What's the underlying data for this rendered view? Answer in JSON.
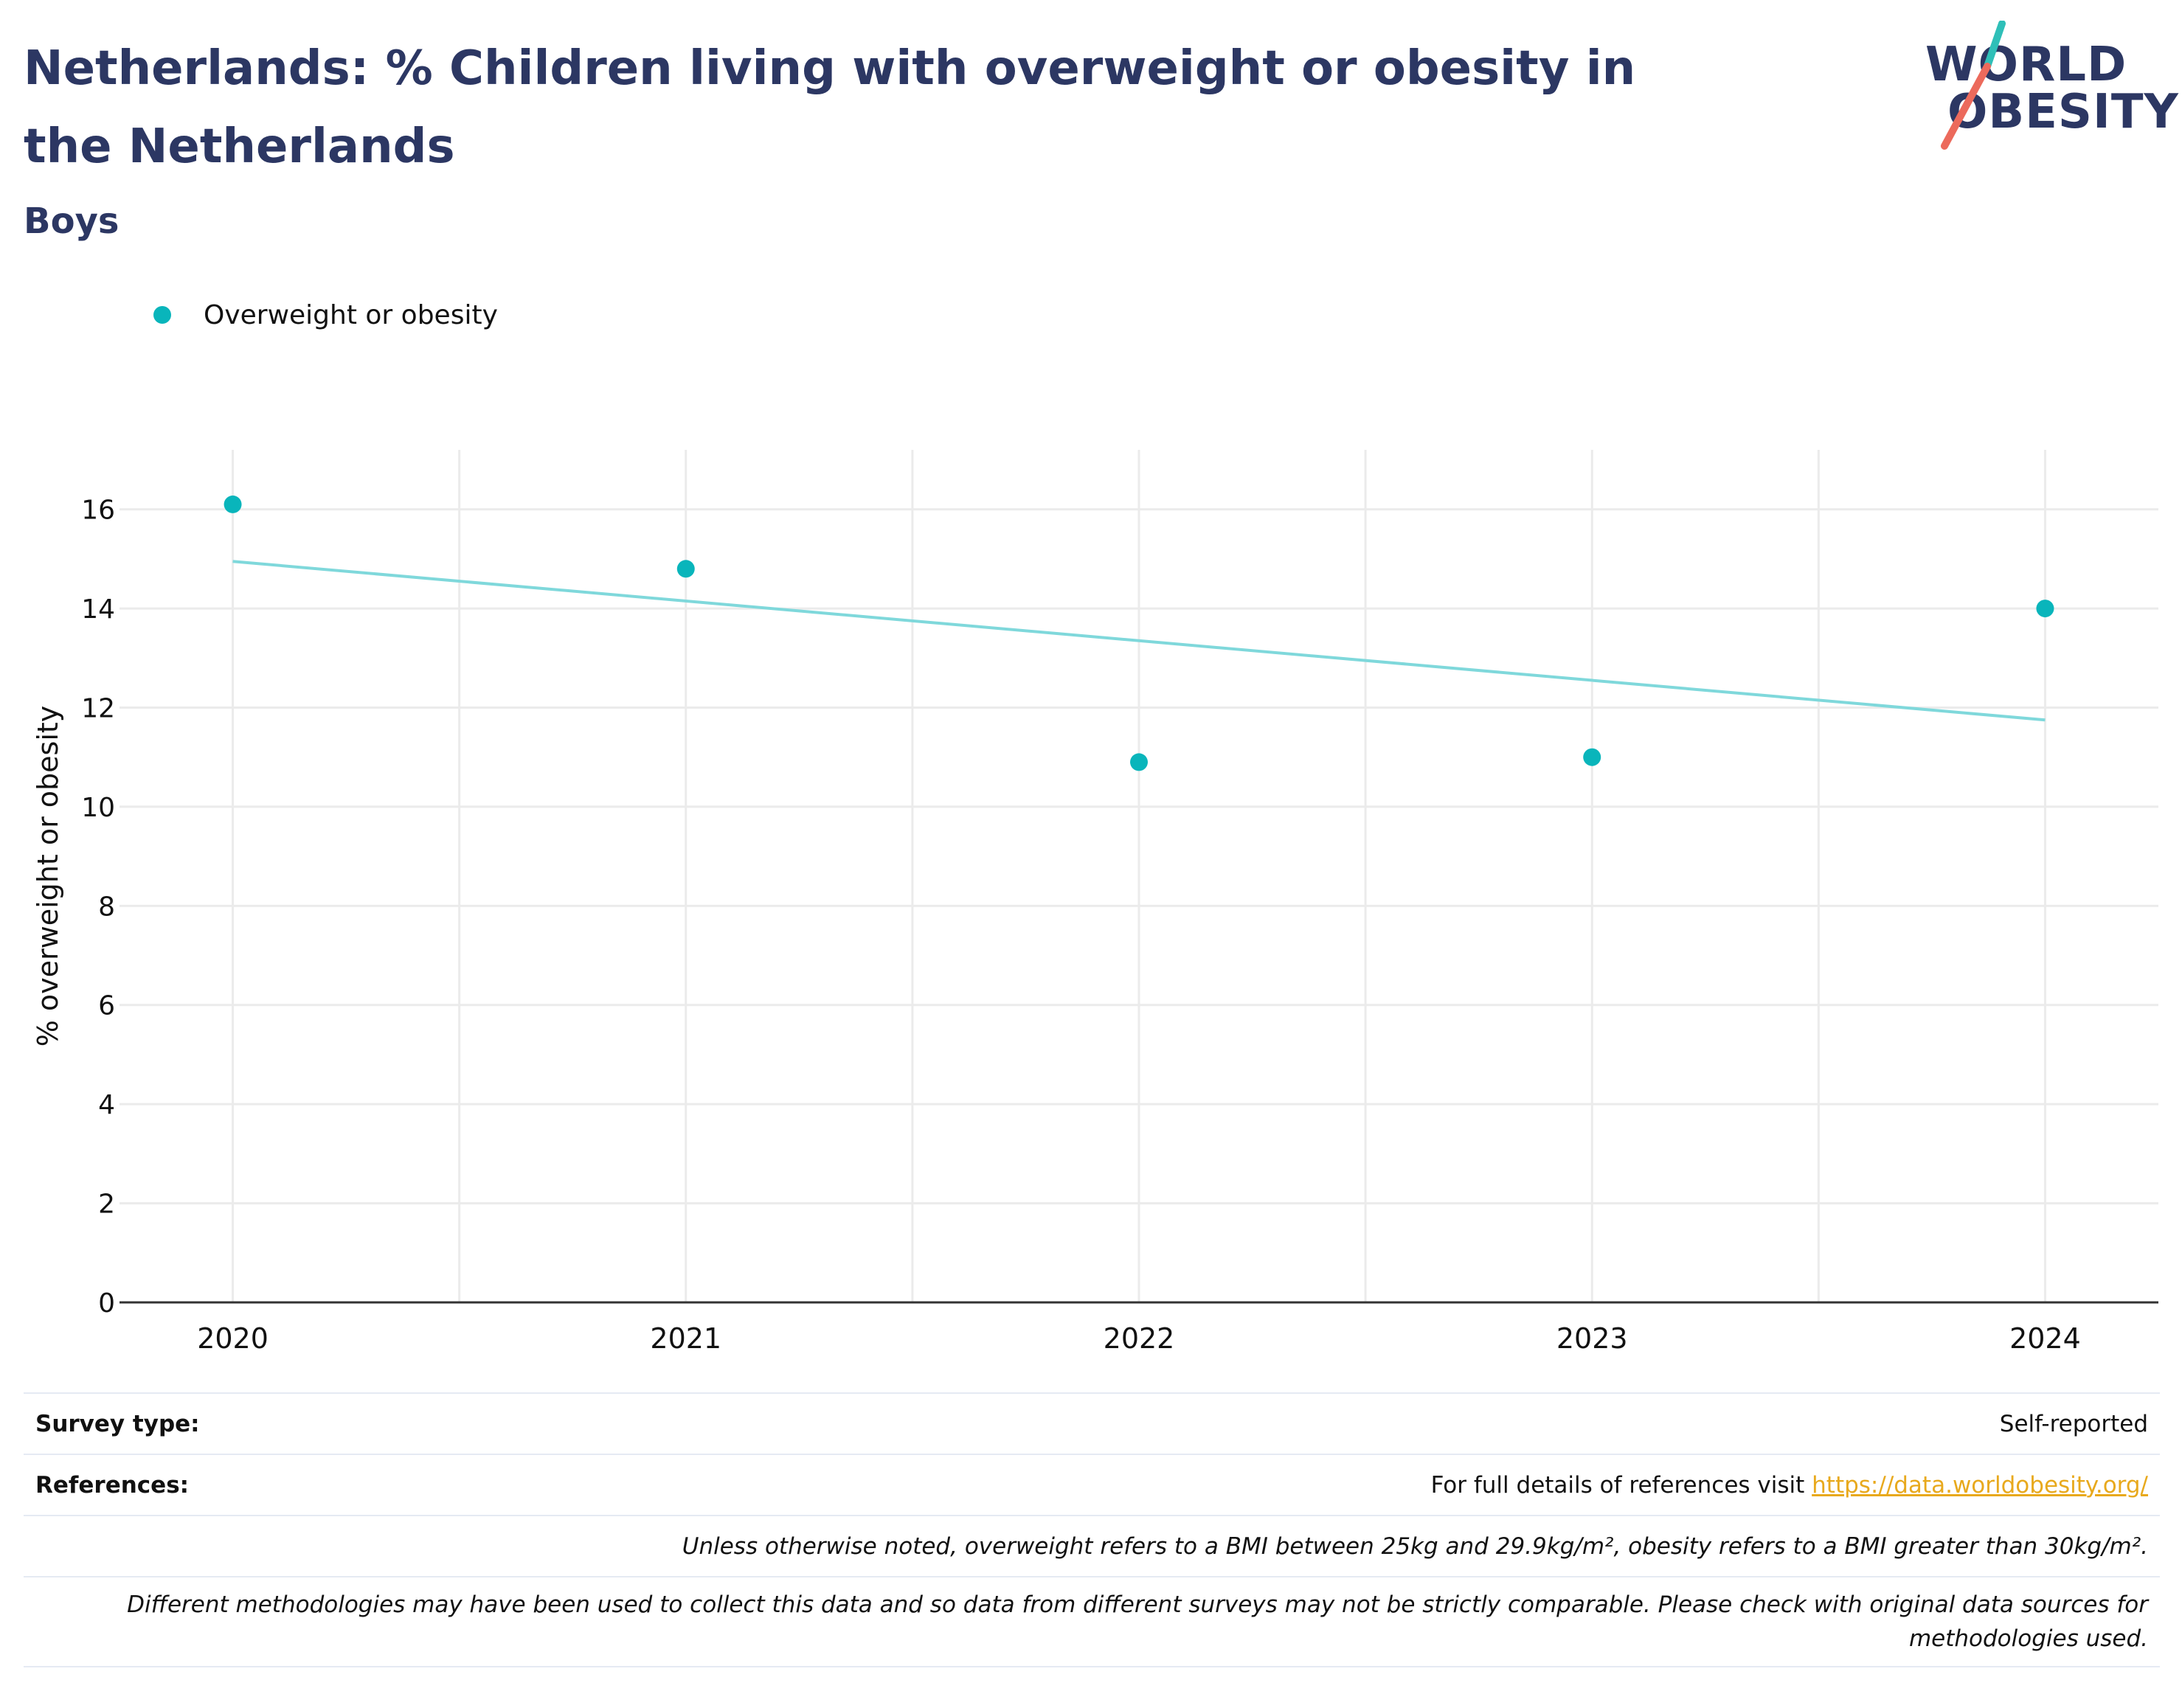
{
  "header": {
    "title": "Netherlands: % Children living with overweight or obesity in the Netherlands",
    "subtitle": "Boys",
    "logo_line1": "WORLD",
    "logo_line2": "OBESITY"
  },
  "legend": {
    "label": "Overweight or obesity"
  },
  "colors": {
    "title": "#2c3763",
    "point": "#09b5bb",
    "trend": "#7fd8db",
    "grid": "#ebebeb",
    "link": "#e8a91d",
    "logo_teal": "#2fbfb8",
    "logo_coral": "#ec6a5c"
  },
  "chart_data": {
    "type": "scatter",
    "x": [
      2020,
      2021,
      2022,
      2023,
      2024
    ],
    "series": [
      {
        "name": "Overweight or obesity",
        "values": [
          16.1,
          14.8,
          10.9,
          11.0,
          14.0
        ]
      }
    ],
    "trendline": {
      "x": [
        2020,
        2024
      ],
      "y": [
        14.95,
        11.75
      ]
    },
    "ylabel": "% overweight or obesity",
    "xlabel": "",
    "ylim": [
      0,
      17.2
    ],
    "xlim": [
      2019.75,
      2024.25
    ],
    "yticks": [
      0,
      2,
      4,
      6,
      8,
      10,
      12,
      14,
      16
    ],
    "xticks": [
      "2020",
      "2021",
      "2022",
      "2023",
      "2024"
    ],
    "grid": true,
    "legend_position": "top-left"
  },
  "footer": {
    "survey_type_label": "Survey type:",
    "survey_type_value": "Self-reported",
    "references_label": "References:",
    "references_text": "For full details of references visit ",
    "references_link": "https://data.worldobesity.org/",
    "note1": "Unless otherwise noted, overweight refers to a BMI between 25kg and 29.9kg/m², obesity refers to a BMI greater than 30kg/m².",
    "note2": "Different methodologies may have been used to collect this data and so data from different surveys may not be strictly comparable. Please check with original data sources for methodologies used."
  }
}
